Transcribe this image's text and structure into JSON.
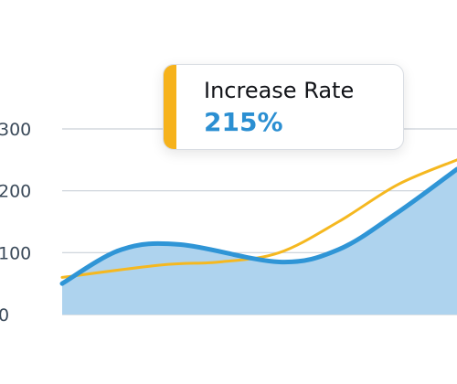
{
  "callout": {
    "label": "Increase Rate",
    "value": "215%"
  },
  "colors": {
    "blue_line": "#2f95d6",
    "blue_fill": "#aed3ee",
    "yellow_line": "#f5b820",
    "gridline": "#c9d0d8",
    "tick_text": "#3b4a5a",
    "accent": "#f6b21b"
  },
  "chart_data": {
    "type": "area",
    "title": "",
    "xlabel": "",
    "ylabel": "",
    "ylim": [
      0,
      300
    ],
    "yticks": [
      "0",
      "100",
      "200",
      "300"
    ],
    "xlim": [
      0,
      10
    ],
    "grid": true,
    "legend": "none",
    "series": [
      {
        "type": "area",
        "color": "blue",
        "points": [
          [
            0,
            50
          ],
          [
            1.5,
            105
          ],
          [
            3,
            113
          ],
          [
            5.5,
            85
          ],
          [
            7,
            105
          ],
          [
            8.5,
            165
          ],
          [
            10,
            235
          ]
        ]
      },
      {
        "type": "line",
        "color": "yellow",
        "points": [
          [
            0,
            60
          ],
          [
            2.5,
            80
          ],
          [
            4,
            85
          ],
          [
            5.5,
            100
          ],
          [
            7,
            150
          ],
          [
            8.5,
            210
          ],
          [
            10,
            250
          ]
        ]
      }
    ]
  }
}
